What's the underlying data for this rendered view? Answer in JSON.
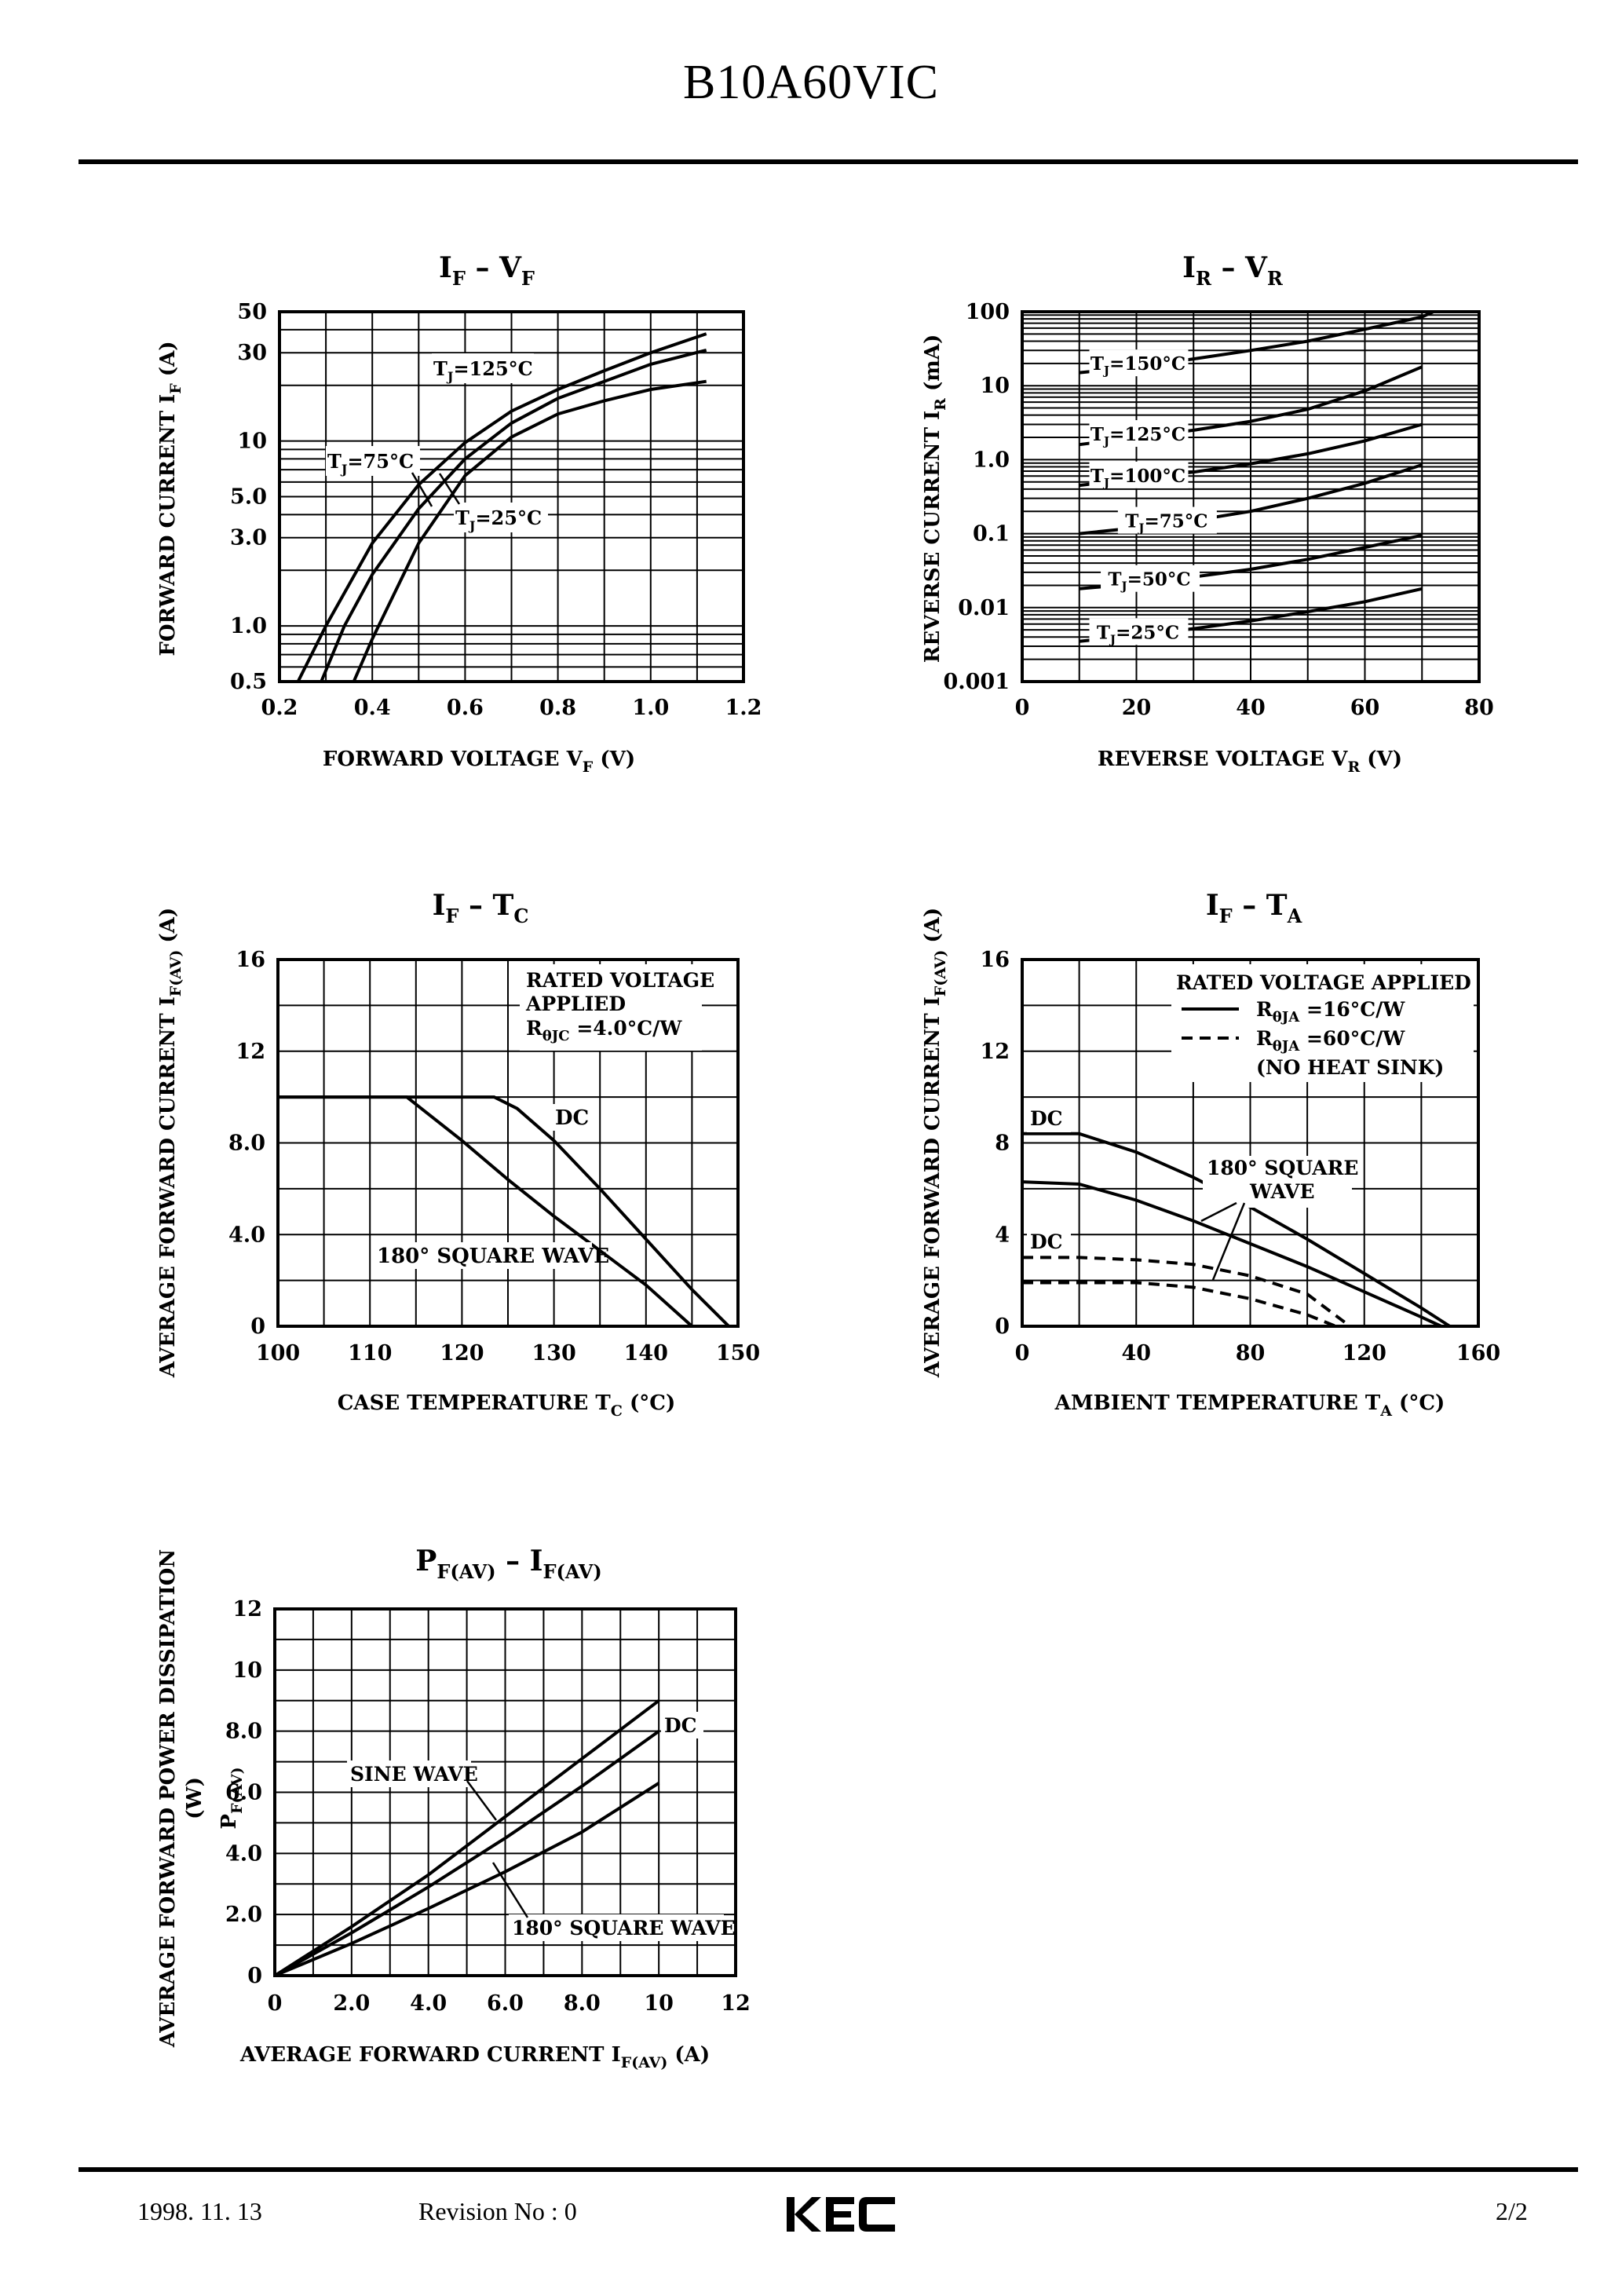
{
  "document": {
    "title": "B10A60VIC",
    "footer": {
      "date": "1998. 11. 13",
      "revision": "Revision No : 0",
      "page": "2/2",
      "logo_text": "KEC"
    }
  },
  "chart_data": [
    {
      "id": "c1",
      "type": "line",
      "title": "I_F - V_F",
      "xlabel": "FORWARD VOLTAGE V_F (V)",
      "ylabel": "FORWARD CURRENT I_F (A)",
      "x_scale": "linear",
      "y_scale": "log",
      "xlim": [
        0.2,
        1.2
      ],
      "ylim": [
        0.5,
        50
      ],
      "x_ticks": [
        0.2,
        0.4,
        0.6,
        0.8,
        1.0,
        1.2
      ],
      "x_tick_labels": [
        "0.2",
        "0.4",
        "0.6",
        "0.8",
        "1.0",
        "1.2"
      ],
      "y_tick_values": [
        0.5,
        1.0,
        3.0,
        5.0,
        10,
        30,
        50
      ],
      "y_tick_labels": [
        "0.5",
        "1.0",
        "3.0",
        "5.0",
        "10",
        "30",
        "50"
      ],
      "grid": true,
      "series": [
        {
          "name": "T_J=125°C",
          "points": [
            [
              0.24,
              0.5
            ],
            [
              0.3,
              1.0
            ],
            [
              0.4,
              2.8
            ],
            [
              0.5,
              5.8
            ],
            [
              0.6,
              9.8
            ],
            [
              0.7,
              14.5
            ],
            [
              0.8,
              19.0
            ],
            [
              0.9,
              24.0
            ],
            [
              1.0,
              30.0
            ],
            [
              1.12,
              38.0
            ]
          ]
        },
        {
          "name": "T_J=75°C",
          "points": [
            [
              0.29,
              0.5
            ],
            [
              0.34,
              1.0
            ],
            [
              0.4,
              1.9
            ],
            [
              0.5,
              4.3
            ],
            [
              0.6,
              8.0
            ],
            [
              0.7,
              12.5
            ],
            [
              0.8,
              17.0
            ],
            [
              0.9,
              21.0
            ],
            [
              1.0,
              26.0
            ],
            [
              1.12,
              31.0
            ]
          ]
        },
        {
          "name": "T_J=25°C",
          "points": [
            [
              0.36,
              0.5
            ],
            [
              0.4,
              0.85
            ],
            [
              0.5,
              2.8
            ],
            [
              0.6,
              6.5
            ],
            [
              0.7,
              10.5
            ],
            [
              0.8,
              14.0
            ],
            [
              0.9,
              16.5
            ],
            [
              1.0,
              19.0
            ],
            [
              1.12,
              21.0
            ]
          ]
        }
      ]
    },
    {
      "id": "c2",
      "type": "line",
      "title": "I_R - V_R",
      "xlabel": "REVERSE VOLTAGE V_R (V)",
      "ylabel": "REVERSE CURRENT I_R (mA)",
      "x_scale": "linear",
      "y_scale": "log",
      "xlim": [
        0,
        80
      ],
      "ylim": [
        0.001,
        100
      ],
      "x_ticks": [
        0,
        20,
        40,
        60,
        80
      ],
      "x_tick_labels": [
        "0",
        "20",
        "40",
        "60",
        "80"
      ],
      "y_tick_values": [
        0.001,
        0.01,
        0.1,
        1.0,
        10,
        100
      ],
      "y_tick_labels": [
        "0.001",
        "0.01",
        "0.1",
        "1.0",
        "10",
        "100"
      ],
      "grid": true,
      "series": [
        {
          "name": "T_J=150°C",
          "points": [
            [
              10,
              15
            ],
            [
              20,
              18
            ],
            [
              30,
              23
            ],
            [
              40,
              30
            ],
            [
              50,
              40
            ],
            [
              60,
              58
            ],
            [
              70,
              85
            ],
            [
              72,
              100
            ]
          ]
        },
        {
          "name": "T_J=125°C",
          "points": [
            [
              10,
              1.6
            ],
            [
              20,
              2.0
            ],
            [
              30,
              2.5
            ],
            [
              40,
              3.3
            ],
            [
              50,
              4.8
            ],
            [
              60,
              8.5
            ],
            [
              70,
              18
            ]
          ]
        },
        {
          "name": "T_J=100°C",
          "points": [
            [
              10,
              0.45
            ],
            [
              20,
              0.55
            ],
            [
              30,
              0.68
            ],
            [
              40,
              0.88
            ],
            [
              50,
              1.2
            ],
            [
              60,
              1.8
            ],
            [
              70,
              3.0
            ]
          ]
        },
        {
          "name": "T_J=75°C",
          "points": [
            [
              10,
              0.1
            ],
            [
              20,
              0.12
            ],
            [
              30,
              0.15
            ],
            [
              40,
              0.2
            ],
            [
              50,
              0.3
            ],
            [
              60,
              0.48
            ],
            [
              70,
              0.85
            ]
          ]
        },
        {
          "name": "T_J=50°C",
          "points": [
            [
              10,
              0.018
            ],
            [
              20,
              0.021
            ],
            [
              30,
              0.026
            ],
            [
              40,
              0.033
            ],
            [
              50,
              0.045
            ],
            [
              60,
              0.065
            ],
            [
              70,
              0.095
            ]
          ]
        },
        {
          "name": "T_J=25°C",
          "points": [
            [
              10,
              0.0035
            ],
            [
              20,
              0.0042
            ],
            [
              30,
              0.0052
            ],
            [
              40,
              0.0066
            ],
            [
              50,
              0.0088
            ],
            [
              60,
              0.012
            ],
            [
              70,
              0.018
            ]
          ]
        }
      ]
    },
    {
      "id": "c3",
      "type": "line",
      "title": "I_F - T_C",
      "xlabel": "CASE TEMPERATURE T_C (°C)",
      "ylabel": "AVERAGE FORWARD CURRENT I_F(AV) (A)",
      "x_scale": "linear",
      "y_scale": "linear",
      "xlim": [
        100,
        150
      ],
      "ylim": [
        0,
        16
      ],
      "x_ticks": [
        100,
        110,
        120,
        130,
        140,
        150
      ],
      "x_tick_labels": [
        "100",
        "110",
        "120",
        "130",
        "140",
        "150"
      ],
      "y_tick_values": [
        0,
        4,
        8,
        12,
        16
      ],
      "y_tick_labels": [
        "0",
        "4.0",
        "8.0",
        "12",
        "16"
      ],
      "grid": true,
      "annotation": [
        "RATED VOLTAGE",
        "APPLIED",
        "RθJC =4.0°C/W"
      ],
      "series": [
        {
          "name": "DC",
          "points": [
            [
              100,
              10
            ],
            [
              123.5,
              10
            ],
            [
              126,
              9.5
            ],
            [
              130,
              8.1
            ],
            [
              135,
              6.0
            ],
            [
              140,
              3.8
            ],
            [
              145,
              1.6
            ],
            [
              149,
              0
            ]
          ]
        },
        {
          "name": "180° SQUARE WAVE",
          "points": [
            [
              100,
              10
            ],
            [
              114,
              10
            ],
            [
              120,
              8.1
            ],
            [
              125,
              6.4
            ],
            [
              130,
              4.8
            ],
            [
              135,
              3.3
            ],
            [
              140,
              1.8
            ],
            [
              145,
              0
            ]
          ]
        }
      ]
    },
    {
      "id": "c4",
      "type": "line",
      "title": "I_F - T_A",
      "xlabel": "AMBIENT TEMPERATURE T_A (°C)",
      "ylabel": "AVERAGE FORWARD CURRENT I_F(AV) (A)",
      "x_scale": "linear",
      "y_scale": "linear",
      "xlim": [
        0,
        160
      ],
      "ylim": [
        0,
        16
      ],
      "x_ticks": [
        0,
        40,
        80,
        120,
        160
      ],
      "x_tick_labels": [
        "0",
        "40",
        "80",
        "120",
        "160"
      ],
      "y_tick_values": [
        0,
        4,
        8,
        12,
        16
      ],
      "y_tick_labels": [
        "0",
        "4",
        "8",
        "12",
        "16"
      ],
      "grid": true,
      "legend_title": "RATED VOLTAGE APPLIED",
      "legend_entries": [
        "RθJA =16°C/W",
        "RθJA =60°C/W",
        "(NO HEAT SINK)"
      ],
      "labels": [
        "DC",
        "180° SQUARE",
        "WAVE",
        "DC"
      ],
      "series": [
        {
          "name": "DC",
          "points": [
            [
              0,
              8.4
            ],
            [
              20,
              8.4
            ],
            [
              40,
              7.6
            ],
            [
              60,
              6.5
            ],
            [
              80,
              5.2
            ],
            [
              100,
              3.8
            ],
            [
              120,
              2.3
            ],
            [
              140,
              0.8
            ],
            [
              150,
              0
            ]
          ]
        },
        {
          "name": "180° SQUARE WAVE",
          "points": [
            [
              0,
              6.3
            ],
            [
              20,
              6.2
            ],
            [
              40,
              5.5
            ],
            [
              60,
              4.6
            ],
            [
              80,
              3.6
            ],
            [
              100,
              2.6
            ],
            [
              120,
              1.5
            ],
            [
              140,
              0.4
            ],
            [
              147,
              0
            ]
          ]
        },
        {
          "name": "DC (no heat sink)",
          "dashed": true,
          "points": [
            [
              0,
              3.0
            ],
            [
              20,
              3.0
            ],
            [
              40,
              2.9
            ],
            [
              60,
              2.7
            ],
            [
              80,
              2.2
            ],
            [
              100,
              1.4
            ],
            [
              115,
              0
            ]
          ]
        },
        {
          "name": "180° SQUARE WAVE (no heat sink)",
          "dashed": true,
          "points": [
            [
              0,
              1.9
            ],
            [
              20,
              1.9
            ],
            [
              40,
              1.9
            ],
            [
              60,
              1.7
            ],
            [
              80,
              1.2
            ],
            [
              100,
              0.5
            ],
            [
              110,
              0
            ]
          ]
        }
      ]
    },
    {
      "id": "c5",
      "type": "line",
      "title": "P_F(AV) - I_F(AV)",
      "xlabel": "AVERAGE FORWARD CURRENT I_F(AV) (A)",
      "ylabel": "AVERAGE FORWARD POWER DISSIPATION P_F(AV) (W)",
      "x_scale": "linear",
      "y_scale": "linear",
      "xlim": [
        0,
        12
      ],
      "ylim": [
        0,
        12
      ],
      "x_ticks": [
        0,
        2,
        4,
        6,
        8,
        10,
        12
      ],
      "x_tick_labels": [
        "0",
        "2.0",
        "4.0",
        "6.0",
        "8.0",
        "10",
        "12"
      ],
      "y_tick_values": [
        0,
        2,
        4,
        6,
        8,
        10,
        12
      ],
      "y_tick_labels": [
        "0",
        "2.0",
        "4.0",
        "6.0",
        "8.0",
        "10",
        "12"
      ],
      "grid": true,
      "series": [
        {
          "name": "DC",
          "points": [
            [
              0,
              0
            ],
            [
              2,
              1.6
            ],
            [
              4,
              3.3
            ],
            [
              6,
              5.2
            ],
            [
              8,
              7.1
            ],
            [
              10,
              9.0
            ]
          ]
        },
        {
          "name": "SINE WAVE",
          "points": [
            [
              0,
              0
            ],
            [
              2,
              1.4
            ],
            [
              4,
              2.9
            ],
            [
              6,
              4.5
            ],
            [
              8,
              6.2
            ],
            [
              10,
              8.0
            ]
          ]
        },
        {
          "name": "180° SQUARE WAVE",
          "points": [
            [
              0,
              0
            ],
            [
              2,
              1.05
            ],
            [
              4,
              2.2
            ],
            [
              6,
              3.4
            ],
            [
              8,
              4.7
            ],
            [
              10,
              6.3
            ]
          ]
        }
      ]
    }
  ]
}
